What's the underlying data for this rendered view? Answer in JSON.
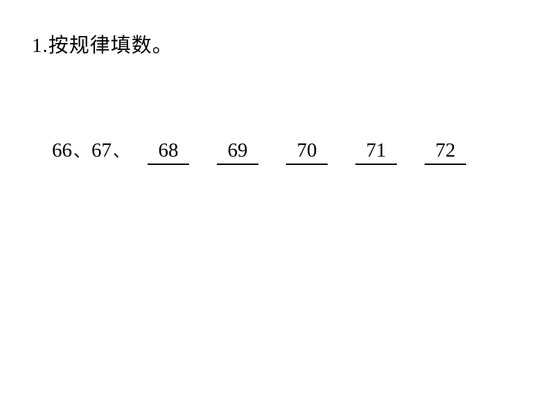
{
  "question": {
    "number": "1.",
    "text": "按规律填数。"
  },
  "sequence": {
    "given": [
      "66",
      "67"
    ],
    "separator": "、",
    "answers": [
      "68",
      "69",
      "70",
      "71",
      "72"
    ]
  },
  "style": {
    "background_color": "#ffffff",
    "text_color": "#000000",
    "header_fontsize": 29,
    "number_fontsize": 29,
    "line_color": "#000000",
    "line_width": 60,
    "line_thickness": 2
  }
}
